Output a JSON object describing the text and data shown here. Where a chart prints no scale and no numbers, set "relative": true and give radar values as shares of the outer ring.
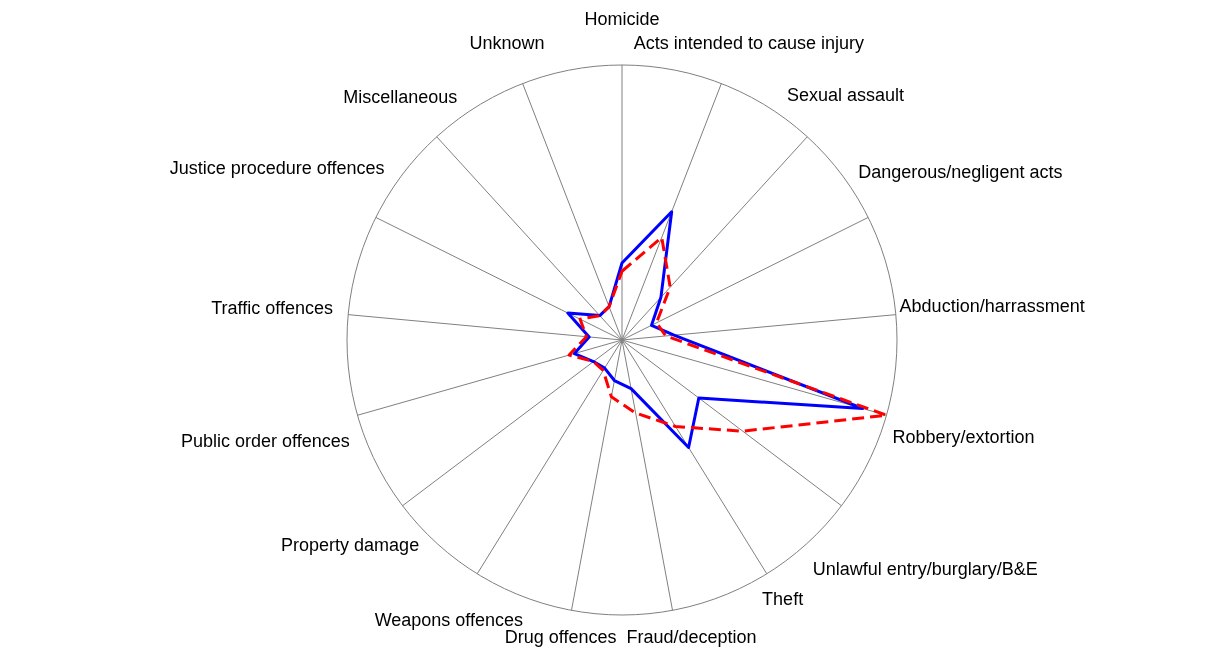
{
  "chart_data": {
    "type": "radar",
    "relative": true,
    "grid": true,
    "legend": false,
    "marker": "none",
    "categories": [
      "Homicide",
      "Acts intended to cause injury",
      "Sexual assault",
      "Dangerous/negligent acts",
      "Abduction/harrassment",
      "Robbery/extortion",
      "Unlawful entry/burglary/B&E",
      "Theft",
      "Fraud/deception",
      "Drug offences",
      "Weapons offences",
      "Property damage",
      "Public order offences",
      "Traffic offences",
      "Justice procedure offences",
      "Miscellaneous",
      "Unknown"
    ],
    "series": [
      {
        "color": "#0000ff",
        "line_style": "solid",
        "values": [
          0.28,
          0.5,
          0.21,
          0.12,
          0.19,
          0.91,
          0.35,
          0.46,
          0.18,
          0.15,
          0.12,
          0.13,
          0.18,
          0.12,
          0.22,
          0.12,
          0.13
        ]
      },
      {
        "color": "#ff0000",
        "line_style": "dashed",
        "values": [
          0.25,
          0.4,
          0.26,
          0.14,
          0.16,
          1.0,
          0.55,
          0.37,
          0.27,
          0.21,
          0.13,
          0.13,
          0.2,
          0.13,
          0.17,
          0.12,
          0.13
        ]
      }
    ]
  }
}
